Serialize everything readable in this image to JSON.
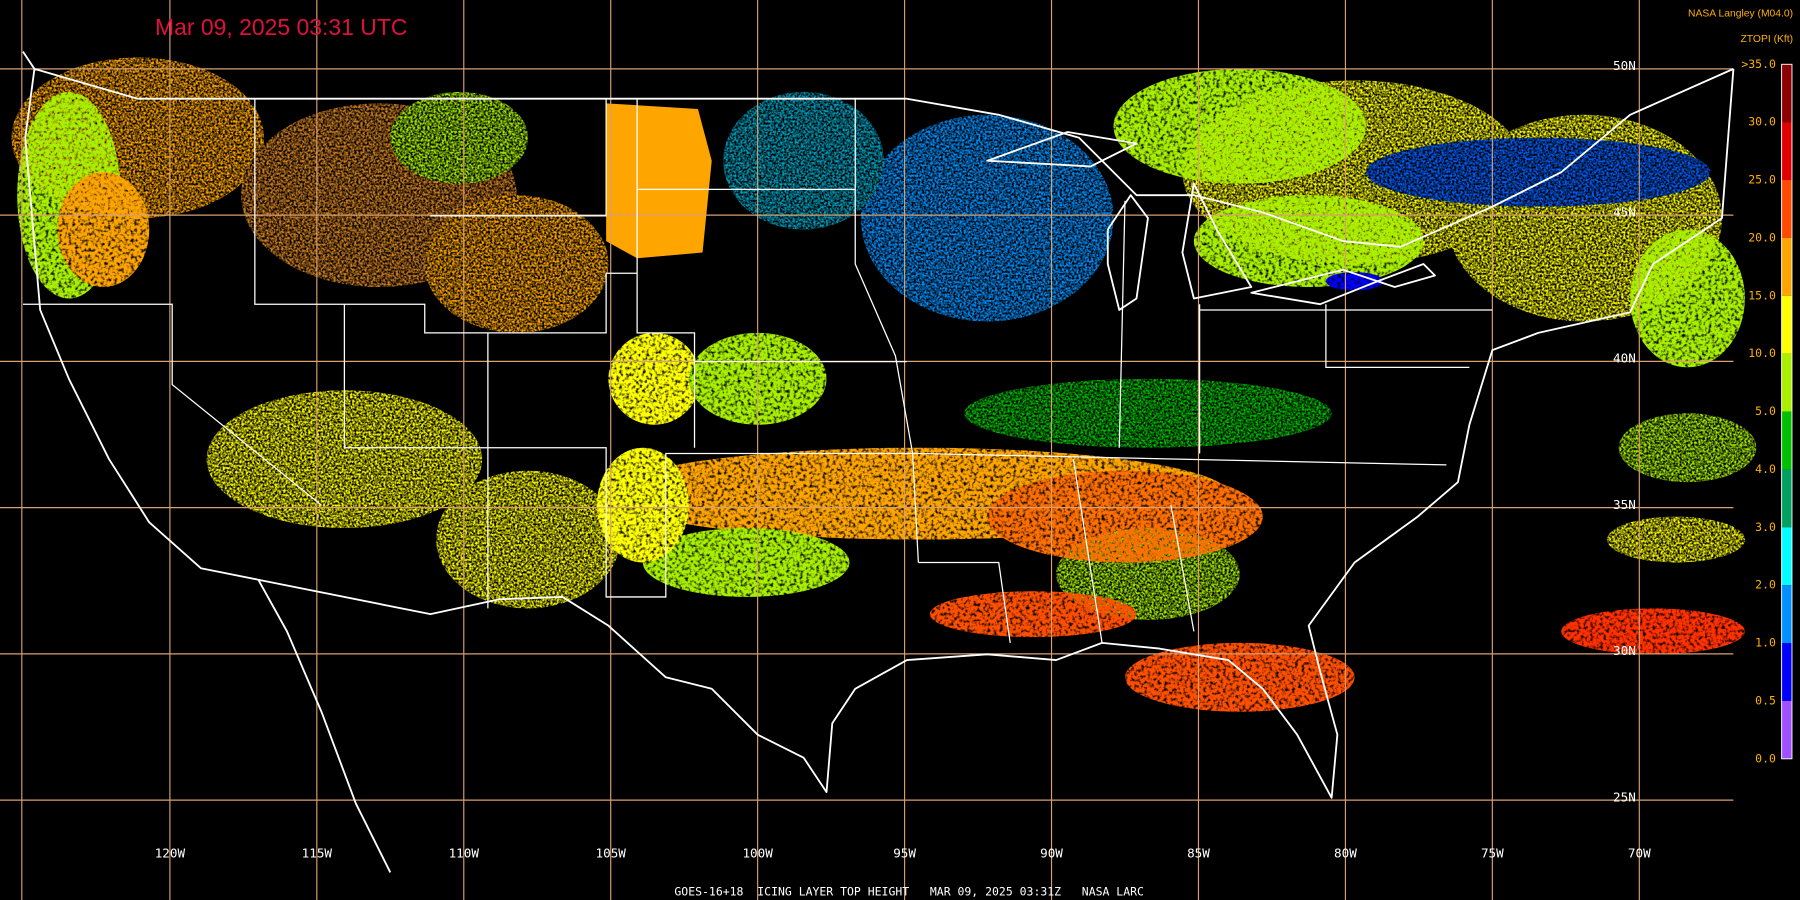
{
  "header": {
    "timestamp": "Mar 09, 2025 03:31 UTC",
    "source": "NASA Langley (M04.0)",
    "product": "ZTOPI (Kft)"
  },
  "legend": {
    "labels": [
      ">35.0",
      "30.0",
      "25.0",
      "20.0",
      "15.0",
      "10.0",
      "5.0",
      "4.0",
      "3.0",
      "2.0",
      "1.0",
      "0.5",
      "0.0"
    ],
    "colors": [
      "#8b0000",
      "#e00000",
      "#ff4a00",
      "#ffa500",
      "#ffff00",
      "#a8f000",
      "#00c000",
      "#00a060",
      "#00ffff",
      "#0090ff",
      "#0000ff",
      "#a050ff"
    ]
  },
  "grid": {
    "latitudes": [
      "50N",
      "45N",
      "40N",
      "35N",
      "30N",
      "25N"
    ],
    "longitudes": [
      "120W",
      "115W",
      "110W",
      "105W",
      "100W",
      "95W",
      "90W",
      "85W",
      "80W",
      "75W",
      "70W"
    ]
  },
  "footer": "GOES-16+18  ICING LAYER TOP HEIGHT   MAR 09, 2025 03:31Z   NASA LARC"
}
